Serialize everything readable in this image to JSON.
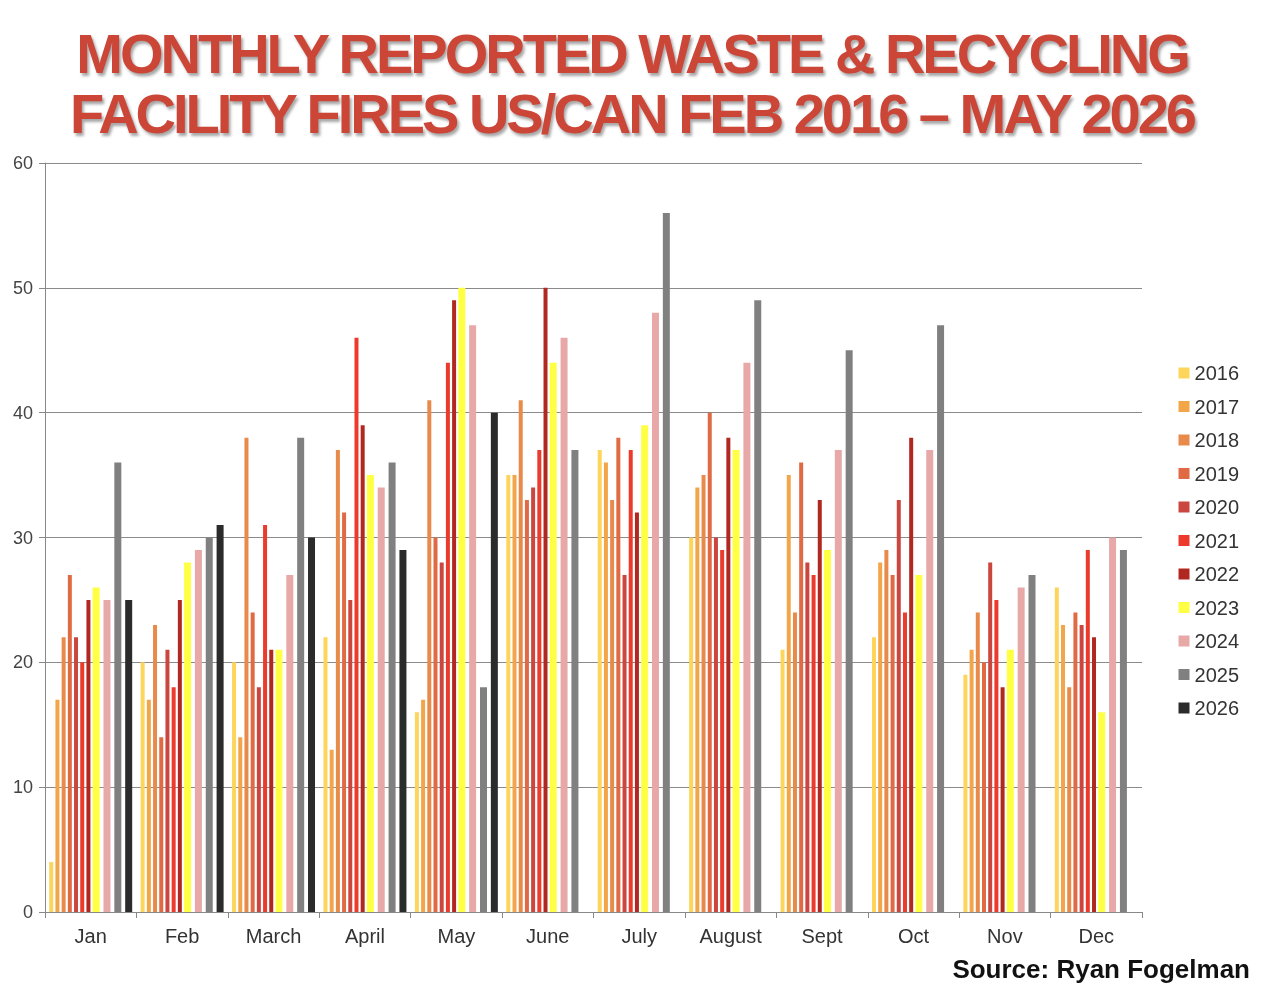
{
  "chart_data": {
    "type": "bar",
    "title": "MONTHLY REPORTED WASTE & RECYCLING FACILITY FIRES US/CAN FEB 2016 – MAY 2026",
    "categories": [
      "Jan",
      "Feb",
      "March",
      "April",
      "May",
      "June",
      "July",
      "August",
      "Sept",
      "Oct",
      "Nov",
      "Dec"
    ],
    "series": [
      {
        "name": "2016",
        "color": "#fcd55a",
        "values": [
          4,
          20,
          20,
          22,
          16,
          35,
          37,
          30,
          21,
          22,
          19,
          26
        ]
      },
      {
        "name": "2017",
        "color": "#f3a54a",
        "values": [
          17,
          17,
          14,
          13,
          17,
          35,
          36,
          34,
          35,
          28,
          21,
          23
        ]
      },
      {
        "name": "2018",
        "color": "#e88a4a",
        "values": [
          22,
          23,
          38,
          37,
          41,
          41,
          33,
          35,
          24,
          29,
          24,
          18
        ]
      },
      {
        "name": "2019",
        "color": "#e06a44",
        "values": [
          27,
          14,
          24,
          32,
          30,
          33,
          38,
          40,
          36,
          27,
          20,
          24
        ]
      },
      {
        "name": "2020",
        "color": "#cc4640",
        "values": [
          22,
          21,
          18,
          25,
          28,
          34,
          27,
          30,
          28,
          33,
          28,
          23
        ]
      },
      {
        "name": "2021",
        "color": "#ec3a2c",
        "values": [
          20,
          18,
          31,
          46,
          44,
          37,
          37,
          29,
          27,
          24,
          25,
          29
        ]
      },
      {
        "name": "2022",
        "color": "#b02820",
        "values": [
          25,
          25,
          21,
          39,
          49,
          50,
          32,
          38,
          33,
          38,
          18,
          22
        ]
      },
      {
        "name": "2023",
        "color": "#ffff44",
        "values": [
          26,
          28,
          21,
          35,
          50,
          44,
          39,
          37,
          29,
          27,
          21,
          16
        ]
      },
      {
        "name": "2024",
        "color": "#e8a8a8",
        "values": [
          25,
          29,
          27,
          34,
          47,
          46,
          48,
          44,
          37,
          37,
          26,
          30
        ]
      },
      {
        "name": "2025",
        "color": "#808080",
        "values": [
          36,
          30,
          38,
          36,
          18,
          37,
          56,
          49,
          45,
          47,
          27,
          29
        ]
      },
      {
        "name": "2026",
        "color": "#2b2b2b",
        "values": [
          25,
          31,
          30,
          29,
          40,
          null,
          null,
          null,
          null,
          null,
          null,
          null
        ]
      }
    ],
    "ylim": [
      0,
      60
    ],
    "yticks": [
      0,
      10,
      20,
      30,
      40,
      50,
      60
    ],
    "grid": "y",
    "legend": "right",
    "annotations": [
      "Source: Ryan Fogelman"
    ]
  }
}
